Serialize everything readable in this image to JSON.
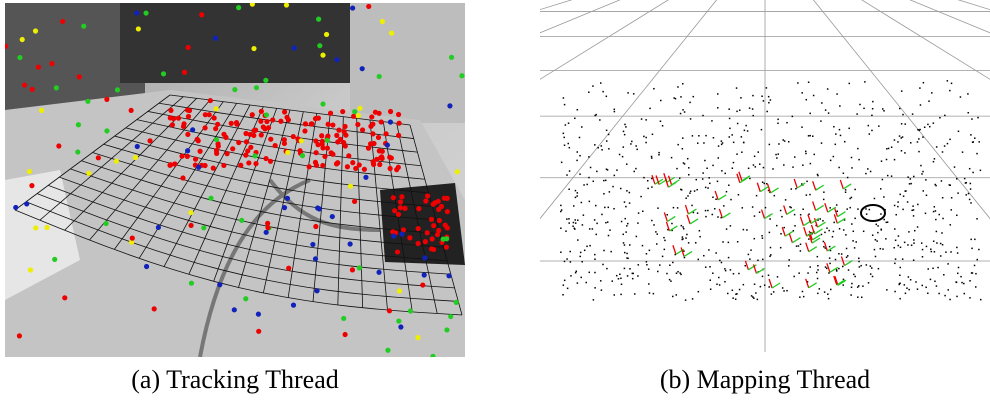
{
  "figure": {
    "panels": [
      {
        "caption": "(a) Tracking Thread"
      },
      {
        "caption": "(b) Mapping Thread"
      }
    ]
  }
}
